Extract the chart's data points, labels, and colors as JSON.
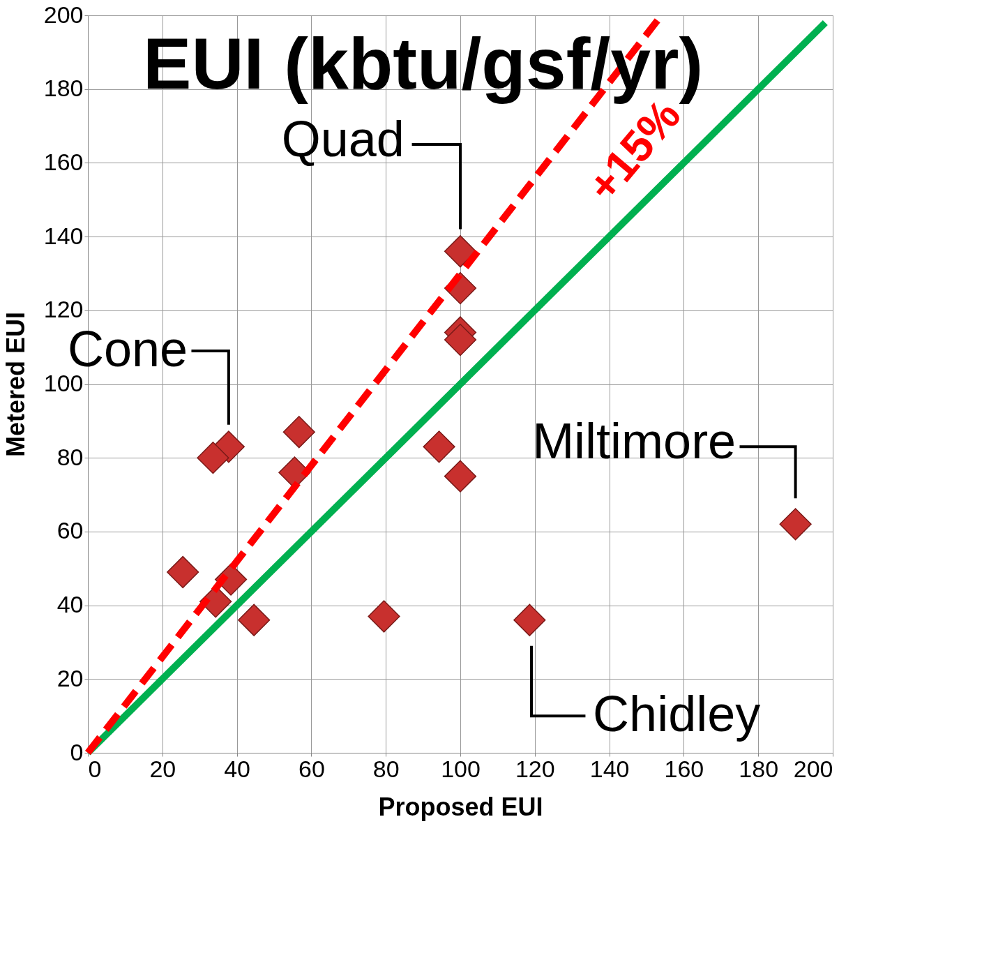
{
  "chart_data": {
    "type": "scatter",
    "title": "EUI (kbtu/gsf/yr)",
    "xlabel": "Proposed EUI",
    "ylabel": "Metered EUI",
    "xlim": [
      0,
      200
    ],
    "ylim": [
      0,
      200
    ],
    "xticks": [
      0,
      20,
      40,
      60,
      80,
      100,
      120,
      140,
      160,
      180,
      200
    ],
    "yticks": [
      0,
      20,
      40,
      60,
      80,
      100,
      120,
      140,
      160,
      180,
      200
    ],
    "grid": true,
    "series": [
      {
        "color": "#c8302e",
        "marker": "diamond",
        "x": [
          100,
          100,
          100,
          100,
          37.8,
          33.6,
          56.7,
          55.5,
          94.3,
          100,
          190,
          25.5,
          38.4,
          34.3,
          44.6,
          79.5,
          118.6
        ],
        "values": [
          136,
          126,
          114,
          112,
          83,
          80,
          87,
          76,
          83,
          75,
          62,
          49,
          47,
          41,
          36,
          37,
          36
        ]
      },
      {
        "type": "line",
        "color": "#00b050",
        "line_style": "solid",
        "x": [
          0,
          198
        ],
        "values": [
          0,
          198
        ]
      },
      {
        "type": "line",
        "color": "#ff0000",
        "line_style": "dashed",
        "x": [
          0,
          154
        ],
        "values": [
          0,
          200
        ]
      }
    ],
    "annotations": [
      {
        "text": "Quad",
        "x": 100,
        "y": 136
      },
      {
        "text": "Cone",
        "x": 37.8,
        "y": 83
      },
      {
        "text": "Miltimore",
        "x": 190,
        "y": 62
      },
      {
        "text": "Chidley",
        "x": 118.6,
        "y": 36
      },
      "+15%"
    ]
  }
}
